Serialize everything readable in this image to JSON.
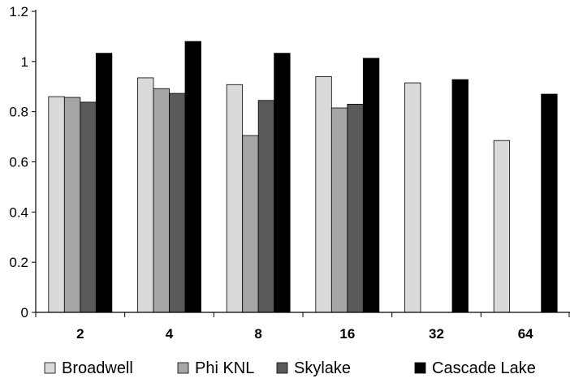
{
  "chart_data": {
    "type": "bar",
    "categories": [
      "2",
      "4",
      "8",
      "16",
      "32",
      "64"
    ],
    "series": [
      {
        "name": "Broadwell",
        "color": "#dadada",
        "values": [
          0.86,
          0.935,
          0.908,
          0.94,
          0.915,
          0.685
        ]
      },
      {
        "name": "Phi KNL",
        "color": "#a6a6a6",
        "values": [
          0.857,
          0.892,
          0.705,
          0.815,
          null,
          null
        ]
      },
      {
        "name": "Skylake",
        "color": "#5a5a5a",
        "values": [
          0.838,
          0.873,
          0.845,
          0.83,
          null,
          null
        ]
      },
      {
        "name": "Cascade Lake",
        "color": "#000000",
        "values": [
          1.033,
          1.08,
          1.033,
          1.013,
          0.928,
          0.87
        ]
      }
    ],
    "yticks": [
      "0",
      "0.2",
      "0.4",
      "0.6",
      "0.8",
      "1",
      "1.2"
    ],
    "ylim": [
      0,
      1.2
    ],
    "grid": false,
    "legend_position": "bottom"
  }
}
